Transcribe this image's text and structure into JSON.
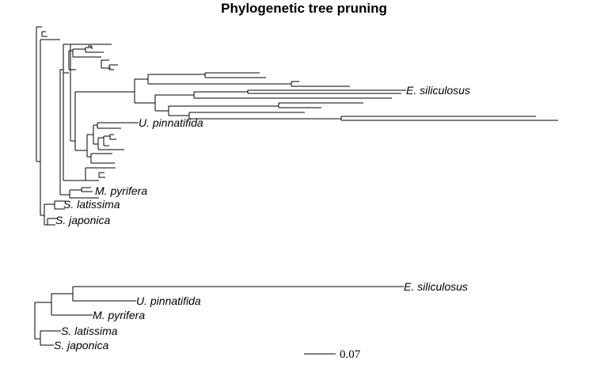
{
  "title": "Phylogenetic tree pruning",
  "full_tree": {
    "labels": {
      "e_siliculosus": "E. siliculosus",
      "u_pinnatifida": "U. pinnatifida",
      "m_pyrifera": "M. pyrifera",
      "s_latissima": "S. latissima",
      "s_japonica": "S. japonica"
    }
  },
  "pruned_tree": {
    "labels": {
      "e_siliculosus": "E. siliculosus",
      "u_pinnatifida": "U. pinnatifida",
      "m_pyrifera": "M. pyrifera",
      "s_latissima": "S. latissima",
      "s_japonica": "S. japonica"
    }
  },
  "scale_bar": {
    "label": "0.07"
  }
}
